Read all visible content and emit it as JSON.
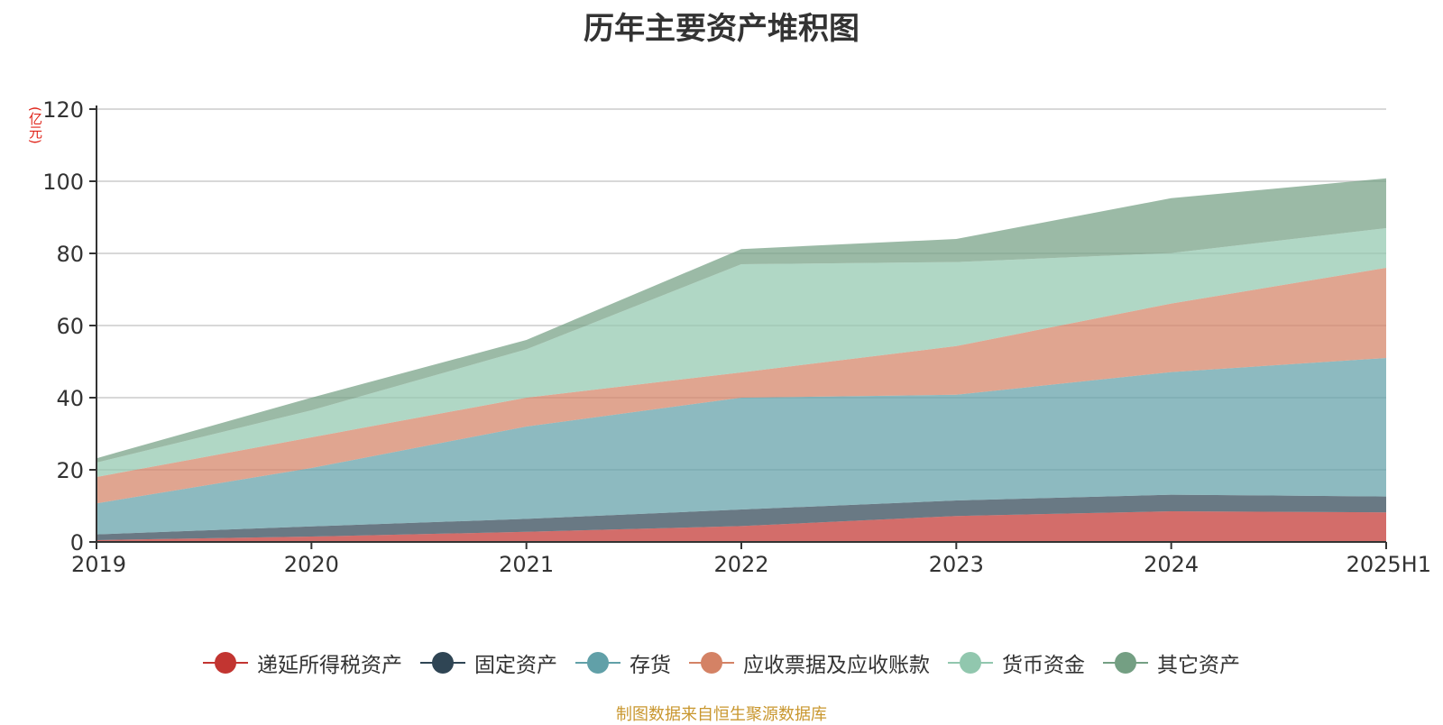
{
  "chart_data": {
    "type": "area",
    "stacked": true,
    "title": "历年主要资产堆积图",
    "unit": "(亿元)",
    "x": [
      "2019",
      "2020",
      "2021",
      "2022",
      "2023",
      "2024",
      "2025H1"
    ],
    "ylim": [
      0,
      120
    ],
    "yticks": [
      0,
      20,
      40,
      60,
      80,
      100,
      120
    ],
    "grid": true,
    "legend_position": "bottom",
    "series": [
      {
        "name": "递延所得税资产",
        "color": "#c23531",
        "values": [
          0.5,
          1.5,
          2.8,
          4.4,
          7.2,
          8.5,
          8.2
        ]
      },
      {
        "name": "固定资产",
        "color": "#2f4554",
        "values": [
          1.6,
          2.8,
          3.6,
          4.6,
          4.3,
          4.6,
          4.4
        ]
      },
      {
        "name": "存货",
        "color": "#61a0a8",
        "values": [
          8.6,
          16.2,
          25.6,
          31.0,
          29.3,
          34.0,
          38.4
        ]
      },
      {
        "name": "应收票据及应收账款",
        "color": "#d48265",
        "values": [
          7.3,
          8.5,
          8.0,
          7.0,
          13.5,
          19.0,
          25.0
        ]
      },
      {
        "name": "货币资金",
        "color": "#91c7ae",
        "values": [
          4.0,
          7.5,
          13.4,
          30.0,
          23.3,
          14.0,
          11.0
        ]
      },
      {
        "name": "其它资产",
        "color": "#749f83",
        "values": [
          1.2,
          3.5,
          2.6,
          4.2,
          6.4,
          15.2,
          13.8
        ]
      }
    ]
  },
  "source_note": "制图数据来自恒生聚源数据库"
}
